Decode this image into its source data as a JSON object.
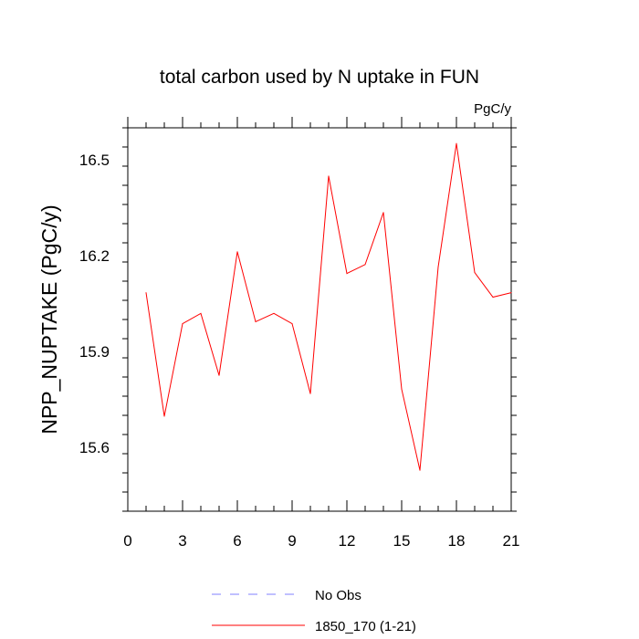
{
  "chart_data": {
    "type": "line",
    "title": "total carbon used by N uptake in FUN",
    "units_label": "PgC/y",
    "xlabel": "",
    "ylabel": "NPP_NUPTAKE  (PgC/y)",
    "xlim": [
      0,
      21
    ],
    "ylim": [
      15.4,
      16.6
    ],
    "xticks": [
      0,
      3,
      6,
      9,
      12,
      15,
      18,
      21
    ],
    "yticks": [
      15.6,
      15.9,
      16.2,
      16.5
    ],
    "ytick_labels": [
      "15.6",
      "15.9",
      "16.2",
      "16.5"
    ],
    "grid": false,
    "legend_position": "bottom",
    "series": [
      {
        "name": "1850_170 (1-21)",
        "color": "#ff0000",
        "x": [
          1,
          2,
          3,
          4,
          5,
          6,
          7,
          8,
          9,
          10,
          11,
          12,
          13,
          14,
          15,
          16,
          17,
          18,
          19,
          20,
          21
        ],
        "y": [
          16.084,
          15.697,
          15.987,
          16.019,
          15.825,
          16.212,
          15.993,
          16.019,
          15.987,
          15.768,
          16.449,
          16.144,
          16.172,
          16.335,
          15.782,
          15.528,
          16.164,
          16.551,
          16.147,
          16.07,
          16.084
        ]
      }
    ],
    "legend": [
      {
        "label": "No Obs",
        "style": "dashed",
        "color": "#8080ff"
      },
      {
        "label": "1850_170 (1-21)",
        "style": "solid",
        "color": "#ff0000"
      }
    ]
  }
}
